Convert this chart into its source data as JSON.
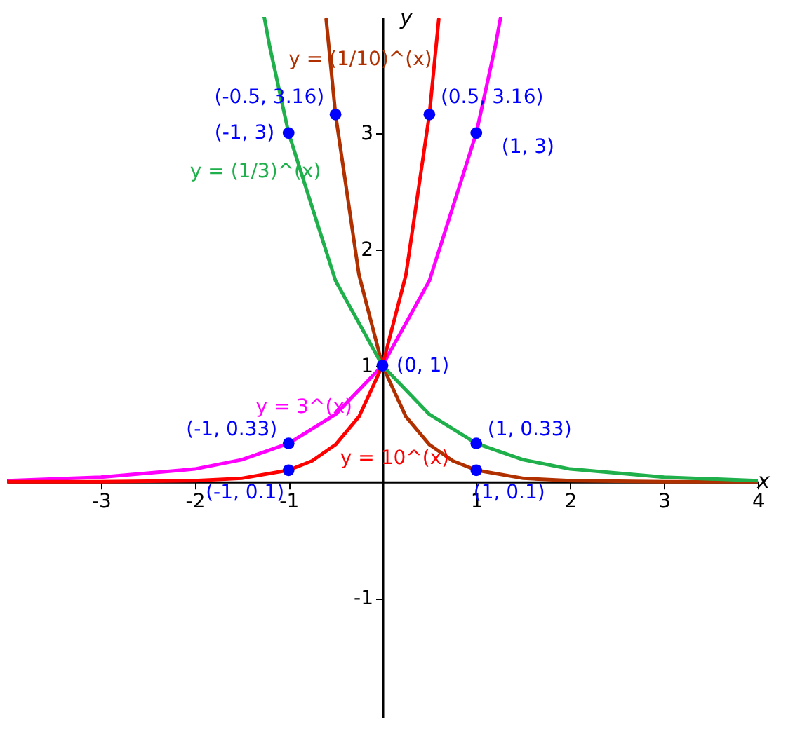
{
  "chart_data": {
    "type": "line",
    "xlabel": "x",
    "ylabel": "y",
    "xlim": [
      -4,
      4
    ],
    "ylim": [
      -2.03,
      4
    ],
    "xticks": [
      -3,
      -2,
      -1,
      1,
      2,
      3,
      4
    ],
    "yticks": [
      -1,
      1,
      2,
      3
    ],
    "grid": false,
    "line_style": "solid",
    "series": [
      {
        "name": "y = (1/10)^(x)",
        "color": "#b03000",
        "x": [
          -0.6,
          -0.5,
          -0.25,
          0,
          0.25,
          0.5,
          0.75,
          1,
          1.5,
          2,
          3,
          4
        ],
        "values": [
          3.98,
          3.16,
          1.78,
          1,
          0.56,
          0.32,
          0.18,
          0.1,
          0.03,
          0.01,
          0,
          0
        ]
      },
      {
        "name": "y = (1/3)^(x)",
        "color": "#1fb04c",
        "x": [
          -1.26,
          -1.2,
          -1,
          -0.5,
          0,
          0.5,
          1,
          1.5,
          2,
          3,
          4
        ],
        "values": [
          4.0,
          3.74,
          3,
          1.73,
          1,
          0.58,
          0.33,
          0.19,
          0.11,
          0.04,
          0.01
        ]
      },
      {
        "name": "y = 3^(x)",
        "color": "#ff00ff",
        "x": [
          -4,
          -3,
          -2,
          -1.5,
          -1,
          -0.5,
          0,
          0.5,
          1,
          1.2,
          1.26
        ],
        "values": [
          0.01,
          0.04,
          0.11,
          0.19,
          0.33,
          0.58,
          1,
          1.73,
          3,
          3.74,
          4.0
        ]
      },
      {
        "name": "y = 10^(x)",
        "color": "#ff0000",
        "x": [
          -4,
          -3,
          -2,
          -1.5,
          -1,
          -0.75,
          -0.5,
          -0.25,
          0,
          0.25,
          0.5,
          0.6
        ],
        "values": [
          0,
          0,
          0.01,
          0.03,
          0.1,
          0.18,
          0.32,
          0.56,
          1,
          1.78,
          3.16,
          3.98
        ]
      },
      {
        "type": "scatter",
        "color": "#0000ff",
        "marker": "circle",
        "x": [
          -0.5,
          -1,
          0.5,
          1,
          0,
          -1,
          -1,
          1,
          1
        ],
        "values": [
          3.16,
          3,
          3.16,
          3,
          1,
          0.33,
          0.1,
          0.33,
          0.1
        ]
      }
    ],
    "annotations": [
      {
        "text": "(-0.5, 3.16)",
        "x": -0.5,
        "y": 3.16
      },
      {
        "text": "(-1, 3)",
        "x": -1,
        "y": 3
      },
      {
        "text": "(0.5, 3.16)",
        "x": 0.5,
        "y": 3.16
      },
      {
        "text": "(1, 3)",
        "x": 1,
        "y": 3
      },
      {
        "text": "(0, 1)",
        "x": 0,
        "y": 1
      },
      {
        "text": "(-1, 0.33)",
        "x": -1,
        "y": 0.33
      },
      {
        "text": "(-1, 0.1)",
        "x": -1,
        "y": 0.1
      },
      {
        "text": "(1, 0.33)",
        "x": 1,
        "y": 0.33
      },
      {
        "text": "(1, 0.1)",
        "x": 1,
        "y": 0.1
      }
    ]
  }
}
